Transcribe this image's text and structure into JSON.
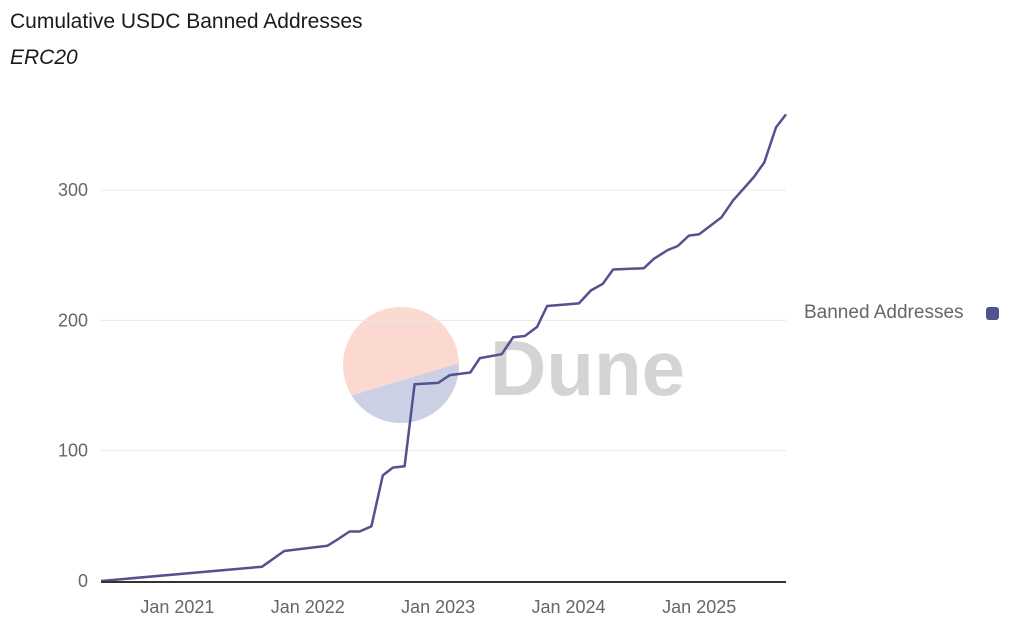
{
  "chart_data": {
    "type": "line",
    "title": "Cumulative USDC Banned Addresses",
    "subtitle": "ERC20",
    "xlabel": "",
    "ylabel": "",
    "xlim": [
      "2020-06-01",
      "2025-09-01"
    ],
    "ylim": [
      0,
      300
    ],
    "x_ticks": [
      {
        "date": "2021-01-01",
        "label": "Jan 2021"
      },
      {
        "date": "2022-01-01",
        "label": "Jan 2022"
      },
      {
        "date": "2023-01-01",
        "label": "Jan 2023"
      },
      {
        "date": "2024-01-01",
        "label": "Jan 2024"
      },
      {
        "date": "2025-01-01",
        "label": "Jan 2025"
      }
    ],
    "y_ticks": [
      0,
      100,
      200,
      300
    ],
    "grid": "horizontal",
    "legend_placement": "right",
    "series": [
      {
        "name": "Banned Addresses",
        "color": "#52528f",
        "points": [
          [
            "2020-06-01",
            0
          ],
          [
            "2021-08-26",
            11
          ],
          [
            "2021-10-27",
            23
          ],
          [
            "2022-02-25",
            27
          ],
          [
            "2022-03-26",
            32
          ],
          [
            "2022-04-28",
            38
          ],
          [
            "2022-05-26",
            38
          ],
          [
            "2022-06-28",
            42
          ],
          [
            "2022-07-30",
            81
          ],
          [
            "2022-08-27",
            87
          ],
          [
            "2022-09-29",
            88
          ],
          [
            "2022-10-27",
            151
          ],
          [
            "2023-01-01",
            152
          ],
          [
            "2023-02-03",
            158
          ],
          [
            "2023-04-01",
            160
          ],
          [
            "2023-04-28",
            171
          ],
          [
            "2023-06-28",
            174
          ],
          [
            "2023-07-30",
            187
          ],
          [
            "2023-09-01",
            188
          ],
          [
            "2023-10-05",
            195
          ],
          [
            "2023-11-02",
            211
          ],
          [
            "2024-01-30",
            213
          ],
          [
            "2024-03-04",
            223
          ],
          [
            "2024-04-06",
            228
          ],
          [
            "2024-05-05",
            239
          ],
          [
            "2024-07-30",
            240
          ],
          [
            "2024-08-26",
            247
          ],
          [
            "2024-10-05",
            254
          ],
          [
            "2024-11-02",
            257
          ],
          [
            "2024-12-03",
            265
          ],
          [
            "2025-01-01",
            266
          ],
          [
            "2025-03-04",
            279
          ],
          [
            "2025-04-06",
            292
          ],
          [
            "2025-06-03",
            310
          ],
          [
            "2025-07-02",
            321
          ],
          [
            "2025-08-04",
            348
          ],
          [
            "2025-09-01",
            358
          ]
        ]
      }
    ]
  },
  "watermark": {
    "text": "Dune",
    "top_color": "#fbd9d0",
    "bottom_color": "#ccd0e4",
    "text_color": "#d4d4d4"
  }
}
